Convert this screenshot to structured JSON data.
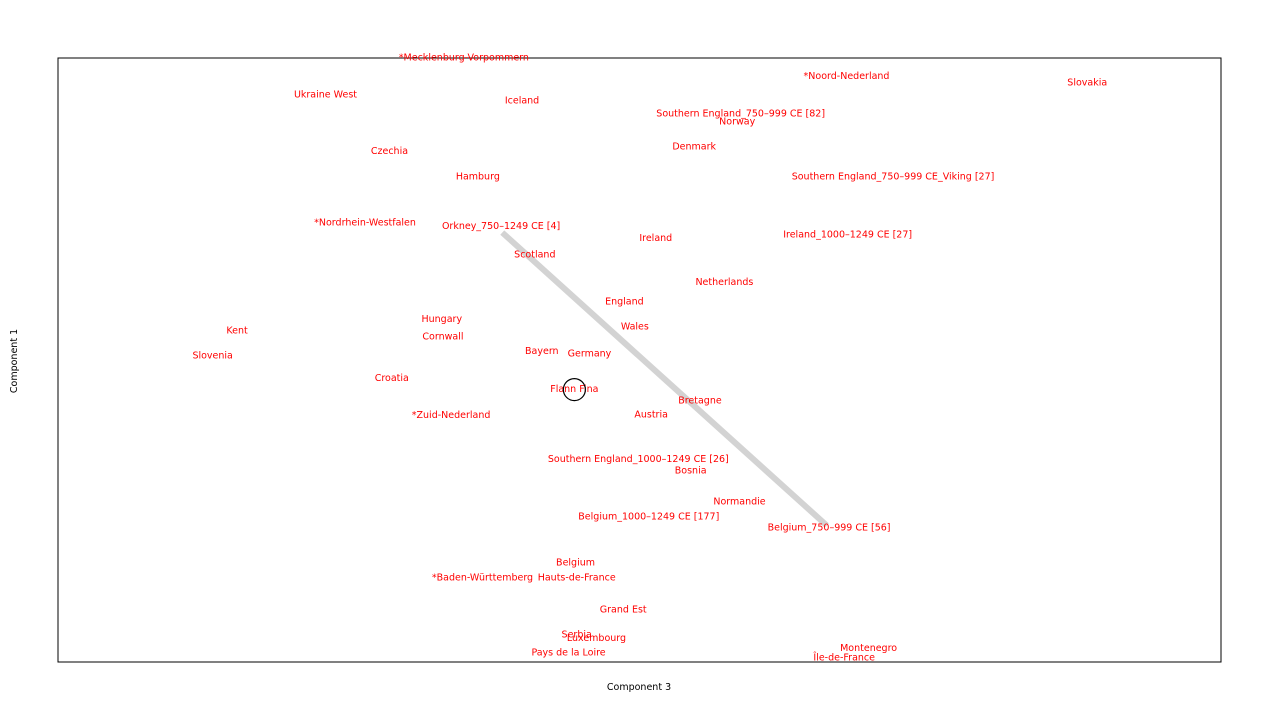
{
  "chart_data": {
    "type": "scatter",
    "title": "",
    "xlabel": "Component 3",
    "ylabel": "Component 1",
    "xlim": [
      0,
      1000
    ],
    "ylim": [
      0,
      1000
    ],
    "grid": false,
    "legend": "none",
    "label_color": "#ff0000",
    "marker_color": "#000000",
    "connector_color": "#d3d3d3",
    "points": [
      {
        "label": "*Mecklenburg-Vorpommern",
        "x": 349,
        "y": 1000
      },
      {
        "label": "*Noord-Nederland",
        "x": 678,
        "y": 969
      },
      {
        "label": "Slovakia",
        "x": 885,
        "y": 959
      },
      {
        "label": "Ukraine West",
        "x": 230,
        "y": 939
      },
      {
        "label": "Iceland",
        "x": 399,
        "y": 929
      },
      {
        "label": "Southern England_750–999 CE [82]",
        "x": 587,
        "y": 907
      },
      {
        "label": "Norway",
        "x": 584,
        "y": 894
      },
      {
        "label": "Denmark",
        "x": 547,
        "y": 853
      },
      {
        "label": "Czechia",
        "x": 285,
        "y": 845
      },
      {
        "label": "Hamburg",
        "x": 361,
        "y": 803
      },
      {
        "label": "Southern England_750–999 CE_Viking [27]",
        "x": 718,
        "y": 803
      },
      {
        "label": "*Nordrhein-Westfalen",
        "x": 264,
        "y": 727
      },
      {
        "label": "Orkney_750–1249 CE [4]",
        "x": 381,
        "y": 721
      },
      {
        "label": "Ireland",
        "x": 514,
        "y": 701
      },
      {
        "label": "Ireland_1000–1249 CE [27]",
        "x": 679,
        "y": 707
      },
      {
        "label": "Scotland",
        "x": 410,
        "y": 674
      },
      {
        "label": "Netherlands",
        "x": 573,
        "y": 628
      },
      {
        "label": "England",
        "x": 487,
        "y": 596
      },
      {
        "label": "Hungary",
        "x": 330,
        "y": 567
      },
      {
        "label": "Kent",
        "x": 154,
        "y": 548
      },
      {
        "label": "Wales",
        "x": 496,
        "y": 555
      },
      {
        "label": "Cornwall",
        "x": 331,
        "y": 538
      },
      {
        "label": "Bayern",
        "x": 416,
        "y": 514
      },
      {
        "label": "Germany",
        "x": 457,
        "y": 510
      },
      {
        "label": "Slovenia",
        "x": 133,
        "y": 507
      },
      {
        "label": "Croatia",
        "x": 287,
        "y": 469
      },
      {
        "label": "Flann Fina",
        "x": 444,
        "y": 451
      },
      {
        "label": "Bretagne",
        "x": 552,
        "y": 432
      },
      {
        "label": "*Zuid-Nederland",
        "x": 338,
        "y": 408
      },
      {
        "label": "Austria",
        "x": 510,
        "y": 409
      },
      {
        "label": "Southern England_1000–1249 CE [26]",
        "x": 499,
        "y": 335
      },
      {
        "label": "Bosnia",
        "x": 544,
        "y": 316
      },
      {
        "label": "Normandie",
        "x": 586,
        "y": 265
      },
      {
        "label": "Belgium_1000–1249 CE [177]",
        "x": 508,
        "y": 240
      },
      {
        "label": "Belgium_750–999 CE [56]",
        "x": 663,
        "y": 222
      },
      {
        "label": "Belgium",
        "x": 445,
        "y": 164
      },
      {
        "label": "*Baden-Württemberg",
        "x": 365,
        "y": 139
      },
      {
        "label": "Hauts-de-France",
        "x": 446,
        "y": 139
      },
      {
        "label": "Grand Est",
        "x": 486,
        "y": 86
      },
      {
        "label": "Serbia",
        "x": 446,
        "y": 45
      },
      {
        "label": "Luxembourg",
        "x": 463,
        "y": 39
      },
      {
        "label": "Montenegro",
        "x": 697,
        "y": 22
      },
      {
        "label": "Pays de la Loire",
        "x": 439,
        "y": 15
      },
      {
        "label": "Île-de-France",
        "x": 676,
        "y": 7
      }
    ],
    "connector": {
      "from": [
        382,
        711
      ],
      "to": [
        661,
        226
      ]
    },
    "marker": {
      "x": 444,
      "y": 451,
      "shape": "open-circle"
    }
  }
}
